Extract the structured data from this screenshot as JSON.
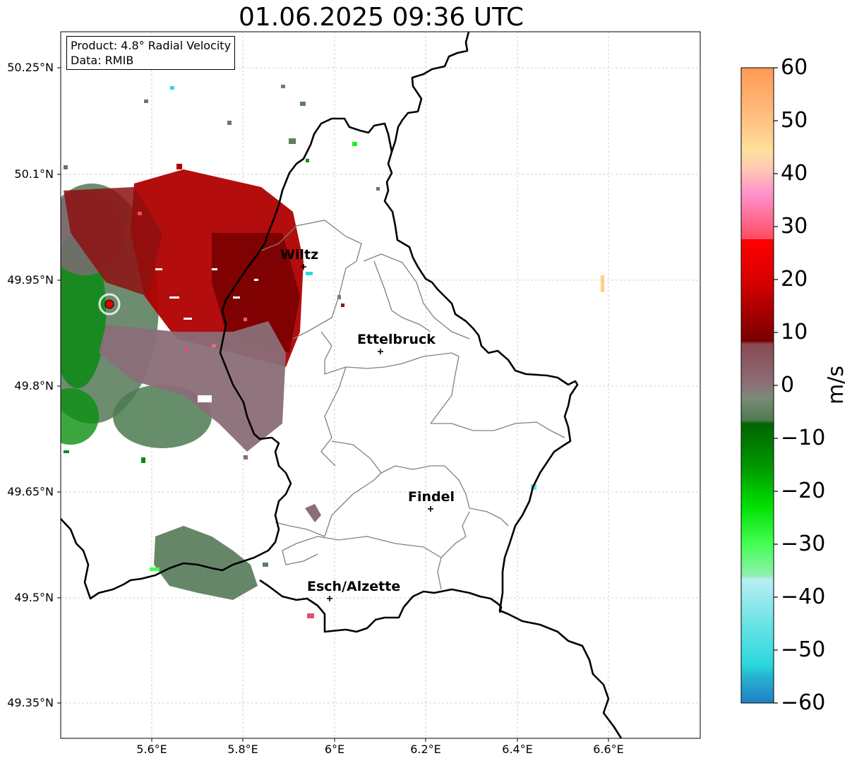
{
  "title": "01.06.2025 09:36 UTC",
  "info": {
    "product": "Product: 4.8° Radial Velocity",
    "data": "Data: RMIB"
  },
  "lat_ticks": [
    "50.25°N",
    "50.1°N",
    "49.95°N",
    "49.8°N",
    "49.65°N",
    "49.5°N",
    "49.35°N"
  ],
  "lon_ticks": [
    "5.6°E",
    "5.8°E",
    "6°E",
    "6.2°E",
    "6.4°E",
    "6.6°E"
  ],
  "cities": [
    {
      "name": "Wiltz"
    },
    {
      "name": "Ettelbruck"
    },
    {
      "name": "Findel"
    },
    {
      "name": "Esch/Alzette"
    }
  ],
  "colorbar": {
    "unit": "m/s",
    "ticks": [
      "60",
      "50",
      "40",
      "30",
      "20",
      "10",
      "0",
      "−10",
      "−20",
      "−30",
      "−40",
      "−50",
      "−60"
    ],
    "range": [
      -60,
      60
    ],
    "colors": {
      "high_orange": "#ff9955",
      "peach": "#ffd39b",
      "pink": "#ff88cc",
      "red": "#ff1a1a",
      "dark_red": "#8b0000",
      "mauve": "#8c6e78",
      "muted_green": "#5e8560",
      "green": "#008000",
      "bright_green": "#33ff33",
      "pale_cyan": "#b4ecf0",
      "cyan": "#2adcdc",
      "blue": "#1f7fc6"
    }
  },
  "map_colors": {
    "border": "#000000",
    "canton": "#808080",
    "grid": "#c0c0c0",
    "radar_site": "#e00000"
  }
}
